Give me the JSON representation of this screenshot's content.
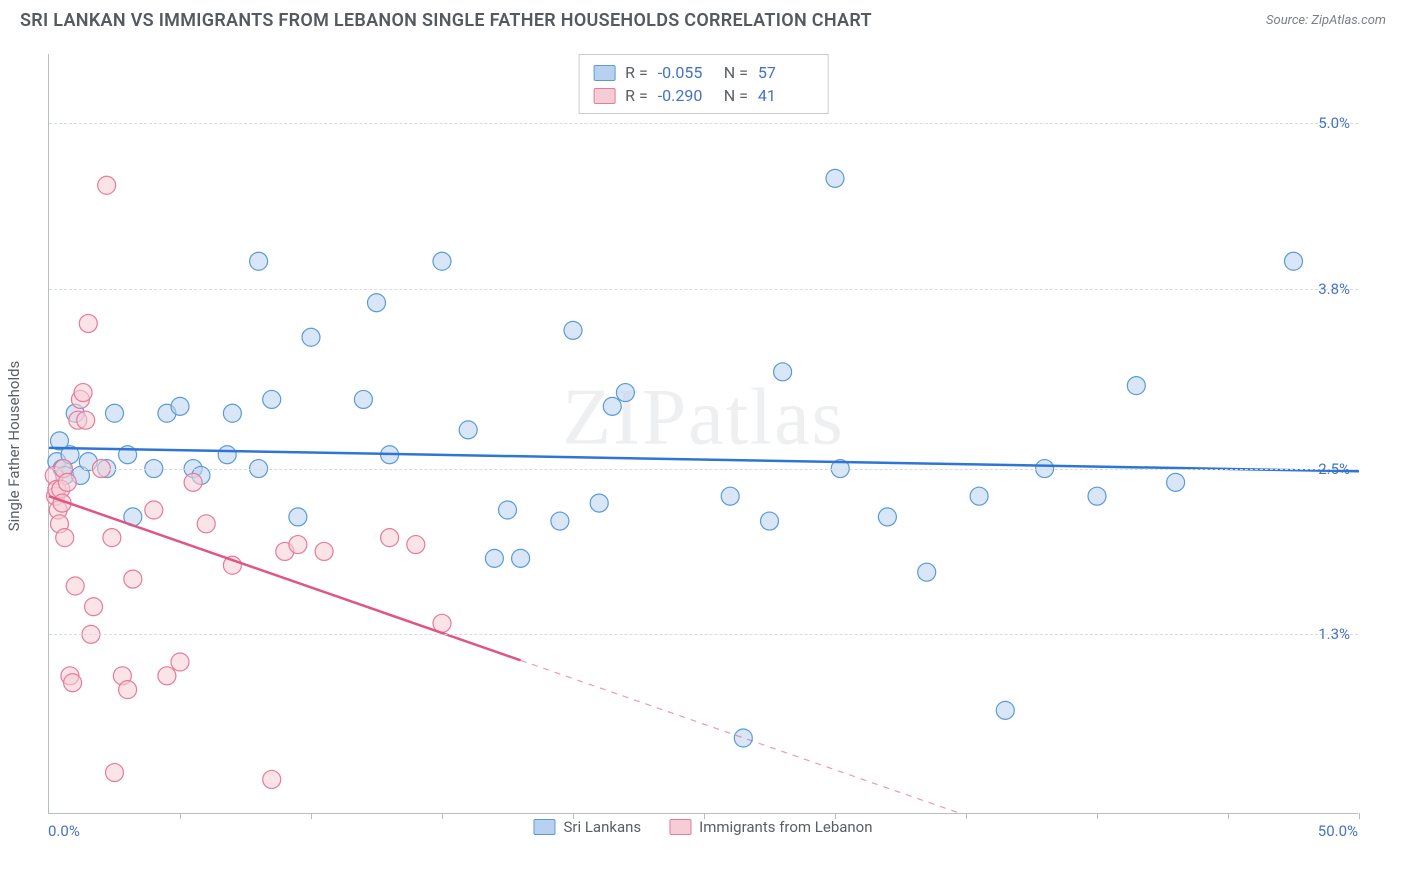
{
  "title": "SRI LANKAN VS IMMIGRANTS FROM LEBANON SINGLE FATHER HOUSEHOLDS CORRELATION CHART",
  "source": "Source: ZipAtlas.com",
  "watermark": "ZIPatlas",
  "y_axis_label": "Single Father Households",
  "chart": {
    "type": "scatter",
    "xlim": [
      0,
      50
    ],
    "ylim": [
      0,
      5.5
    ],
    "x_min_label": "0.0%",
    "x_max_label": "50.0%",
    "x_ticks": [
      0,
      5,
      10,
      15,
      20,
      25,
      30,
      35,
      40,
      45,
      50
    ],
    "y_gridlines": [
      {
        "value": 1.3,
        "label": "1.3%"
      },
      {
        "value": 2.5,
        "label": "2.5%"
      },
      {
        "value": 3.8,
        "label": "3.8%"
      },
      {
        "value": 5.0,
        "label": "5.0%"
      }
    ],
    "background_color": "#ffffff",
    "grid_color": "#d8dbdf",
    "axis_color": "#b8bdc2",
    "tick_label_color": "#4472c4",
    "marker_radius": 9,
    "marker_opacity": 0.55,
    "series": [
      {
        "name": "Sri Lankans",
        "color_fill": "#b9d1f0",
        "color_stroke": "#5b9bd5",
        "R": "-0.055",
        "N": "57",
        "regression": {
          "x1": 0,
          "y1": 2.65,
          "x2": 50,
          "y2": 2.48,
          "solid_until_x": 50,
          "line_color": "#2e75d6",
          "line_width": 2.5
        },
        "points": [
          [
            0.3,
            2.55
          ],
          [
            0.4,
            2.7
          ],
          [
            0.5,
            2.5
          ],
          [
            0.6,
            2.45
          ],
          [
            0.8,
            2.6
          ],
          [
            1.0,
            2.9
          ],
          [
            1.2,
            2.45
          ],
          [
            1.5,
            2.55
          ],
          [
            2.2,
            2.5
          ],
          [
            2.5,
            2.9
          ],
          [
            3.0,
            2.6
          ],
          [
            3.2,
            2.15
          ],
          [
            4.0,
            2.5
          ],
          [
            4.5,
            2.9
          ],
          [
            5.0,
            2.95
          ],
          [
            5.5,
            2.5
          ],
          [
            5.8,
            2.45
          ],
          [
            6.8,
            2.6
          ],
          [
            7.0,
            2.9
          ],
          [
            8.0,
            4.0
          ],
          [
            8.0,
            2.5
          ],
          [
            8.5,
            3.0
          ],
          [
            9.5,
            2.15
          ],
          [
            10.0,
            3.45
          ],
          [
            12.0,
            3.0
          ],
          [
            12.5,
            3.7
          ],
          [
            13.0,
            2.6
          ],
          [
            15.0,
            4.0
          ],
          [
            16.0,
            2.78
          ],
          [
            17.0,
            1.85
          ],
          [
            17.5,
            2.2
          ],
          [
            18.0,
            1.85
          ],
          [
            19.5,
            2.12
          ],
          [
            20.0,
            3.5
          ],
          [
            21.0,
            2.25
          ],
          [
            21.5,
            2.95
          ],
          [
            22.0,
            3.05
          ],
          [
            26.0,
            2.3
          ],
          [
            26.5,
            0.55
          ],
          [
            27.5,
            2.12
          ],
          [
            28.0,
            3.2
          ],
          [
            30.0,
            4.6
          ],
          [
            30.2,
            2.5
          ],
          [
            32.0,
            2.15
          ],
          [
            33.5,
            1.75
          ],
          [
            35.5,
            2.3
          ],
          [
            36.5,
            0.75
          ],
          [
            38.0,
            2.5
          ],
          [
            40.0,
            2.3
          ],
          [
            41.5,
            3.1
          ],
          [
            43.0,
            2.4
          ],
          [
            47.5,
            4.0
          ]
        ]
      },
      {
        "name": "Immigrants from Lebanon",
        "color_fill": "#f6cdd6",
        "color_stroke": "#e77a9a",
        "R": "-0.290",
        "N": "41",
        "regression": {
          "x1": 0,
          "y1": 2.3,
          "x2": 50,
          "y2": -1.0,
          "solid_until_x": 18,
          "line_color": "#e15582",
          "line_width": 2.5
        },
        "points": [
          [
            0.2,
            2.45
          ],
          [
            0.25,
            2.3
          ],
          [
            0.3,
            2.35
          ],
          [
            0.35,
            2.2
          ],
          [
            0.4,
            2.1
          ],
          [
            0.45,
            2.35
          ],
          [
            0.5,
            2.25
          ],
          [
            0.55,
            2.5
          ],
          [
            0.6,
            2.0
          ],
          [
            0.7,
            2.4
          ],
          [
            0.8,
            1.0
          ],
          [
            0.9,
            0.95
          ],
          [
            1.0,
            1.65
          ],
          [
            1.1,
            2.85
          ],
          [
            1.2,
            3.0
          ],
          [
            1.3,
            3.05
          ],
          [
            1.4,
            2.85
          ],
          [
            1.5,
            3.55
          ],
          [
            1.6,
            1.3
          ],
          [
            1.7,
            1.5
          ],
          [
            2.0,
            2.5
          ],
          [
            2.2,
            4.55
          ],
          [
            2.4,
            2.0
          ],
          [
            2.5,
            0.3
          ],
          [
            2.8,
            1.0
          ],
          [
            3.0,
            0.9
          ],
          [
            3.2,
            1.7
          ],
          [
            4.0,
            2.2
          ],
          [
            4.5,
            1.0
          ],
          [
            5.0,
            1.1
          ],
          [
            5.5,
            2.4
          ],
          [
            6.0,
            2.1
          ],
          [
            7.0,
            1.8
          ],
          [
            8.5,
            0.25
          ],
          [
            9.0,
            1.9
          ],
          [
            9.5,
            1.95
          ],
          [
            10.5,
            1.9
          ],
          [
            13.0,
            2.0
          ],
          [
            14.0,
            1.95
          ],
          [
            15.0,
            1.38
          ]
        ]
      }
    ],
    "legend_box": {
      "r_label": "R =",
      "n_label": "N ="
    }
  }
}
